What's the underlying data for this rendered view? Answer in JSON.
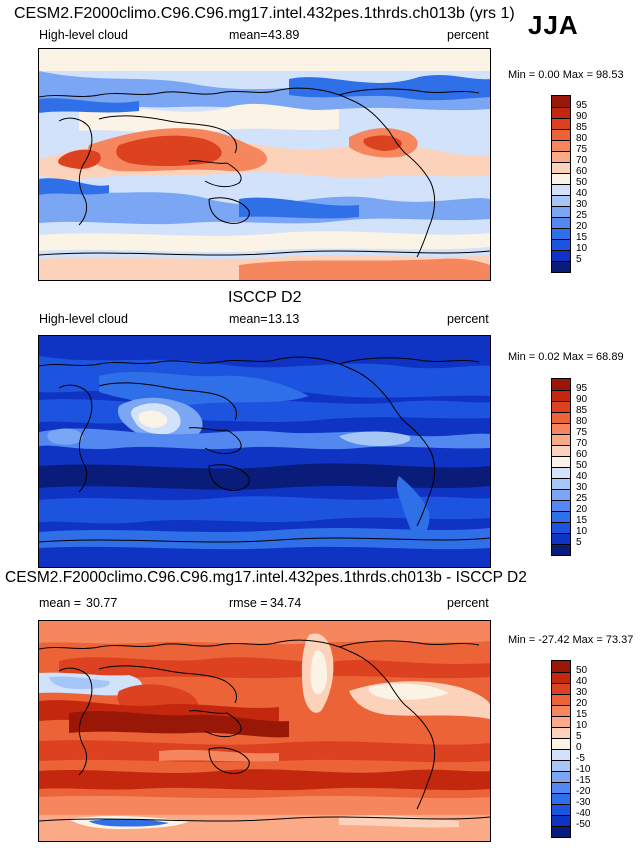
{
  "figure": {
    "season": "JJA",
    "colors": {
      "abs": [
        "#0a1c7a",
        "#0f33c2",
        "#1c54e0",
        "#2f6fe8",
        "#5288f0",
        "#7aa6f4",
        "#a7c6f8",
        "#d1e2fa",
        "#fbf3e6",
        "#fcd2ba",
        "#fbaa87",
        "#f5865d",
        "#eb6337",
        "#dc4220",
        "#c3280f",
        "#981707"
      ],
      "diff": [
        "#0a1c7a",
        "#0f33c2",
        "#1c54e0",
        "#2f6fe8",
        "#5288f0",
        "#7aa6f4",
        "#a7c6f8",
        "#d1e2fa",
        "#fbf3e6",
        "#fcd2ba",
        "#fbaa87",
        "#f5865d",
        "#eb6337",
        "#dc4220",
        "#c3280f",
        "#981707"
      ]
    }
  },
  "chart_data": [
    {
      "type": "heatmap",
      "title": "CESM2.F2000climo.C96.C96.mg17.intel.432pes.1thrds.ch013b (yrs 1)",
      "left_label": "High-level cloud",
      "stat_label": "mean=",
      "stat_value": "43.89",
      "units": "percent",
      "range_text": "Min =   0.00 Max =  98.53",
      "min": 0.0,
      "max": 98.53,
      "colorbar_levels": [
        "95",
        "90",
        "85",
        "80",
        "75",
        "70",
        "60",
        "50",
        "40",
        "30",
        "25",
        "20",
        "15",
        "10",
        "5"
      ]
    },
    {
      "type": "heatmap",
      "title": "ISCCP D2",
      "left_label": "High-level cloud",
      "stat_label": "mean=",
      "stat_value": "13.13",
      "units": "percent",
      "range_text": "Min =   0.02 Max =  68.89",
      "min": 0.02,
      "max": 68.89,
      "colorbar_levels": [
        "95",
        "90",
        "85",
        "80",
        "75",
        "70",
        "60",
        "50",
        "40",
        "30",
        "25",
        "20",
        "15",
        "10",
        "5"
      ]
    },
    {
      "type": "heatmap",
      "title": "CESM2.F2000climo.C96.C96.mg17.intel.432pes.1thrds.ch013b - ISCCP D2",
      "left_label": "mean =",
      "left_value": "30.77",
      "stat_label": "rmse =",
      "stat_value": "34.74",
      "units": "percent",
      "range_text": "Min = -27.42 Max =  73.37",
      "min": -27.42,
      "max": 73.37,
      "colorbar_levels": [
        "50",
        "40",
        "30",
        "20",
        "15",
        "10",
        "5",
        "0",
        "-5",
        "-10",
        "-15",
        "-20",
        "-30",
        "-40",
        "-50"
      ]
    }
  ]
}
